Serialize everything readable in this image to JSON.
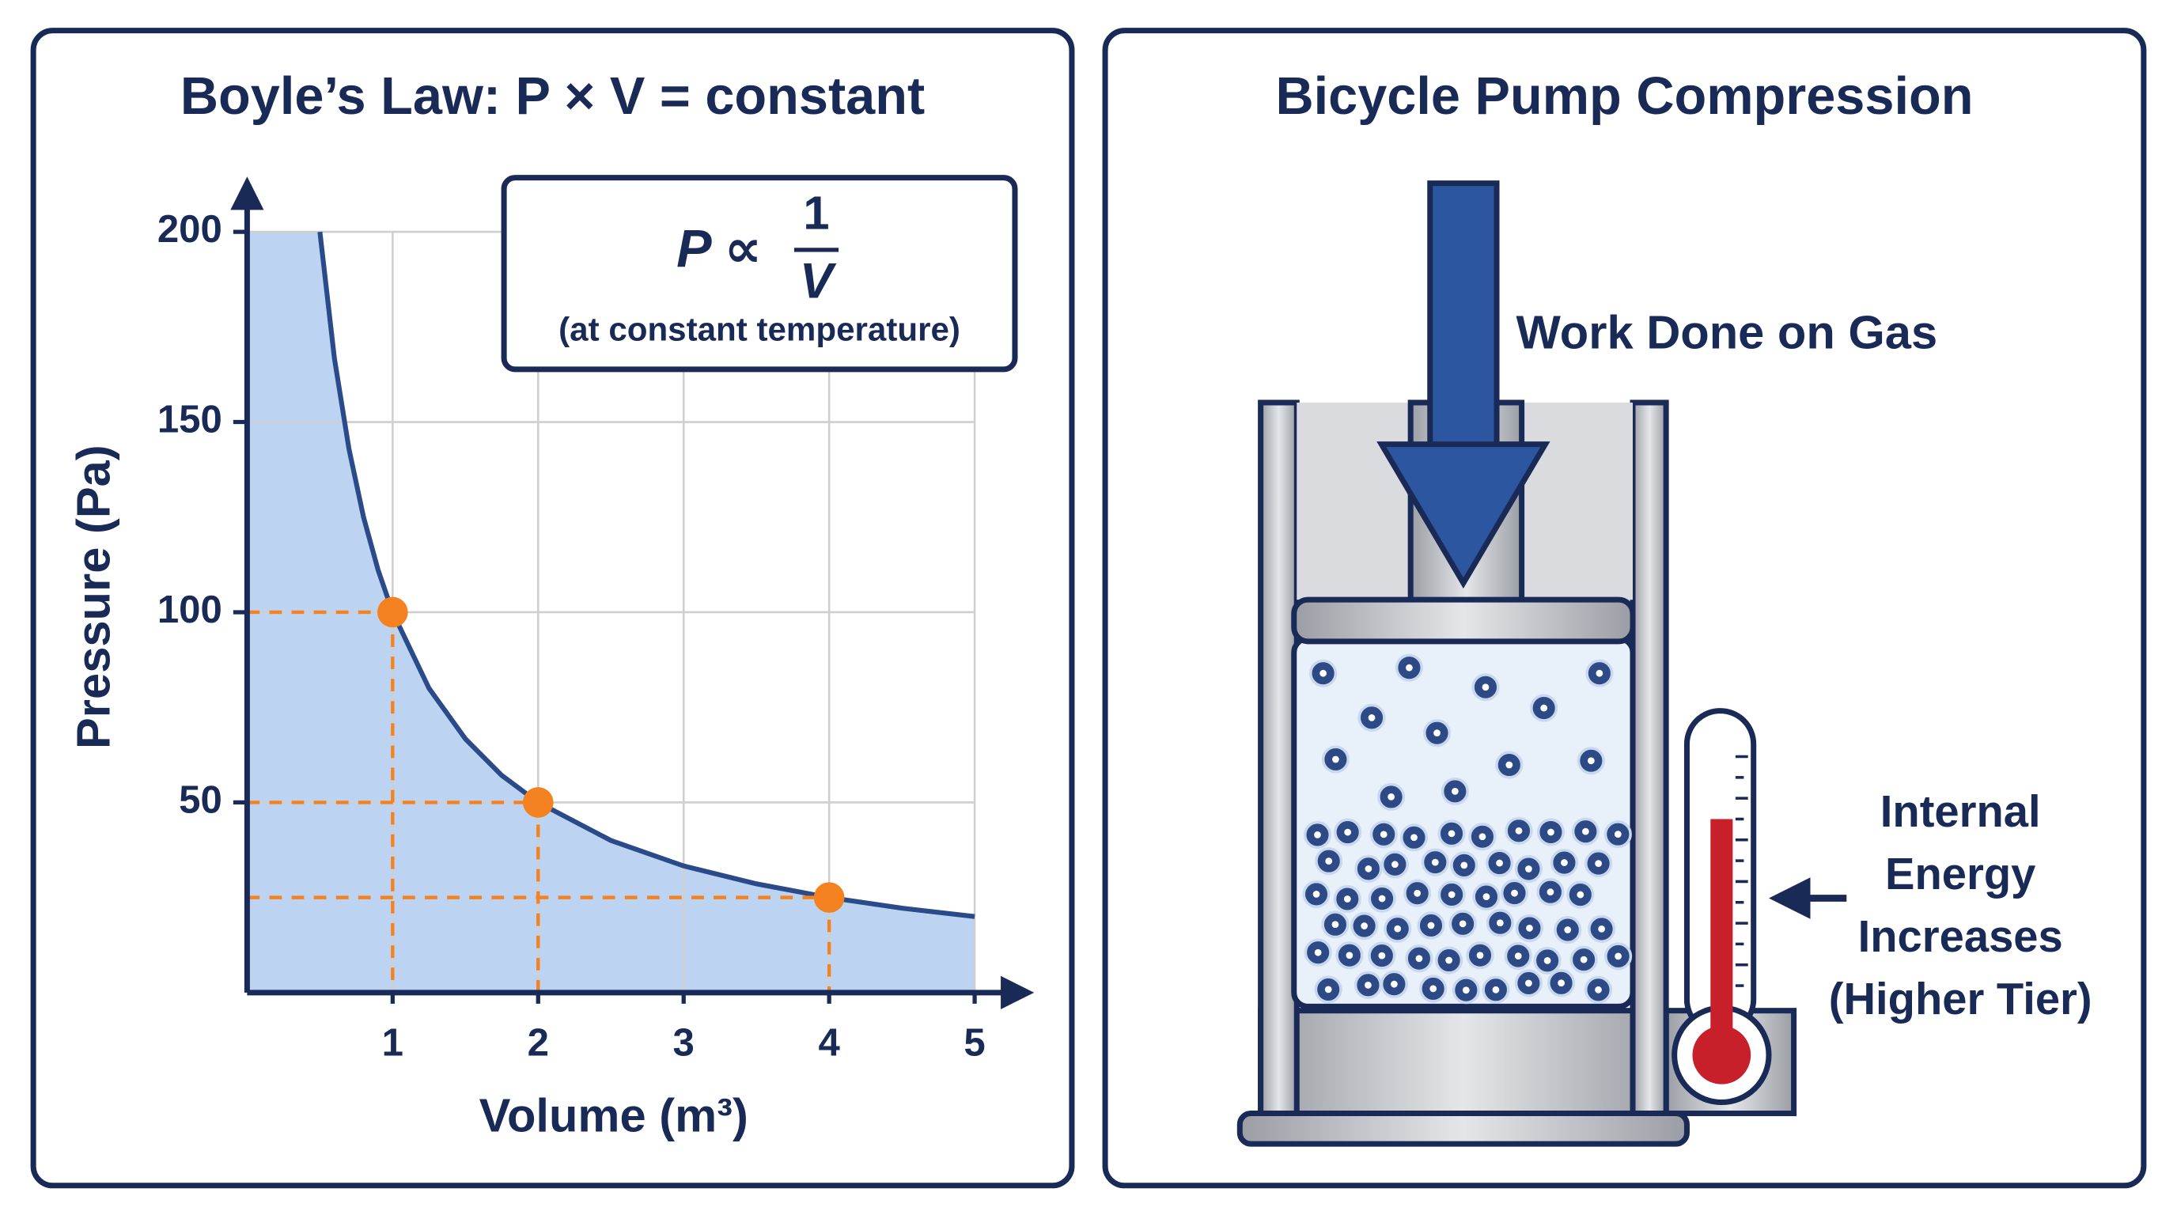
{
  "chart_data": {
    "type": "line",
    "title": "Boyle’s Law: P × V = constant",
    "x_label": "Volume (m³)",
    "y_label": "Pressure (Pa)",
    "x": [
      0.5,
      0.6,
      0.7,
      0.8,
      0.9,
      1,
      1.25,
      1.5,
      1.75,
      2,
      2.5,
      3,
      3.5,
      4,
      4.5,
      5
    ],
    "series": [
      {
        "color": "#2b4a8a",
        "fill": "#bcd4f2",
        "values": [
          200,
          166.7,
          142.9,
          125,
          111.1,
          100,
          80,
          66.7,
          57.1,
          50,
          40,
          33.3,
          28.6,
          25,
          22.2,
          20
        ]
      }
    ],
    "markers": {
      "color": "#f58220",
      "x": [
        1,
        2,
        4
      ],
      "values": [
        100,
        50,
        25
      ]
    },
    "xlim": [
      0,
      5
    ],
    "xticks": [
      1,
      2,
      3,
      4,
      5
    ],
    "ylim": [
      0,
      200
    ],
    "yticks": [
      50,
      100,
      150,
      200
    ],
    "grid": true,
    "annotation": {
      "formula": "P ∝",
      "numerator": "1",
      "denominator": "V",
      "note": "(at constant temperature)"
    }
  },
  "pump": {
    "title": "Bicycle Pump Compression",
    "force_label": "Work Done on Gas",
    "energy_label": [
      "Internal",
      "Energy",
      "Increases",
      "(Higher Tier)"
    ]
  }
}
